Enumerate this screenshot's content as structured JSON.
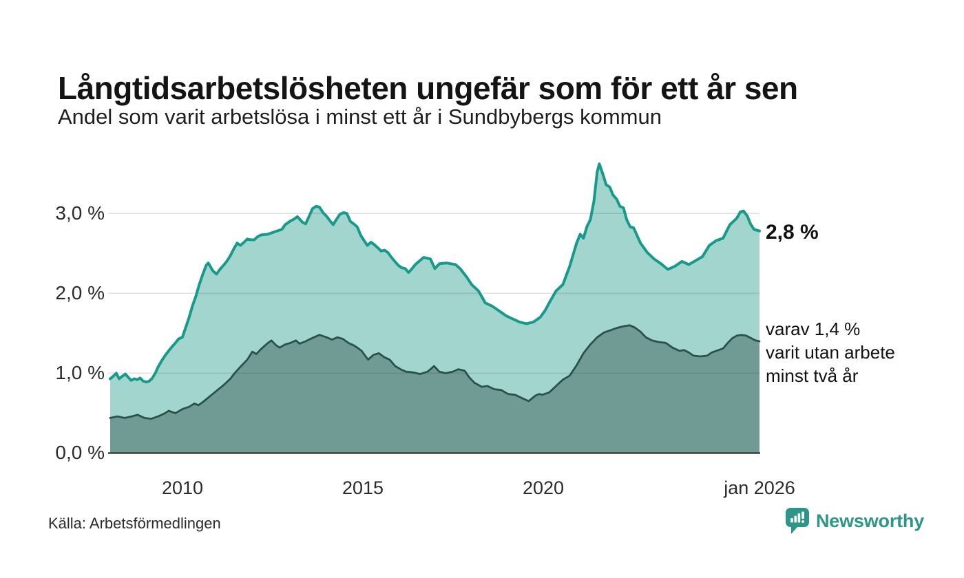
{
  "header": {
    "title": "Långtidsarbetslösheten ungefär som för ett år sen",
    "subtitle": "Andel som varit arbetslösa i minst ett år i Sundbybergs kommun"
  },
  "footer": {
    "source": "Källa: Arbetsförmedlingen",
    "brand": "Newsworthy"
  },
  "colors": {
    "line_top": "#179a8c",
    "fill_top": "#a2d5ce",
    "line_bottom": "#2b514d",
    "fill_bottom": "#709b94",
    "gridline": "rgba(30,30,30,0.13)",
    "axis_baseline": "#3f3f3f",
    "brand_teal": "#2e9589",
    "text": "#141414"
  },
  "chart_data": {
    "type": "area",
    "title": "Långtidsarbetslösheten ungefär som för ett år sen",
    "subtitle": "Andel som varit arbetslösa i minst ett år i Sundbybergs kommun",
    "source": "Källa: Arbetsförmedlingen",
    "x_domain": [
      2008.0,
      2026.0
    ],
    "y_domain": [
      0,
      3.78
    ],
    "grid": true,
    "legend_position": "end-of-line annotations",
    "annotation_latest": "2,8 %",
    "annotation_secondary": [
      "varav 1,4 %",
      "varit utan arbete",
      "minst två år"
    ],
    "yticks": [
      {
        "value": 0,
        "label": "0,0 %"
      },
      {
        "value": 1,
        "label": "1,0 %"
      },
      {
        "value": 2,
        "label": "2,0 %"
      },
      {
        "value": 3,
        "label": "3,0 %"
      }
    ],
    "xticks": [
      {
        "value": 2010,
        "label": "2010"
      },
      {
        "value": 2015,
        "label": "2015"
      },
      {
        "value": 2020,
        "label": "2020"
      },
      {
        "value": 2026,
        "label": "jan 2026"
      }
    ],
    "series": [
      {
        "name": "arbetslösa minst ett år",
        "color": "#179a8c",
        "fill": "#a2d5ce",
        "stroke_width": 4,
        "latest_value": 2.8,
        "points": [
          [
            2008.0,
            0.93
          ],
          [
            2008.08,
            0.96
          ],
          [
            2008.17,
            1.0
          ],
          [
            2008.25,
            0.93
          ],
          [
            2008.33,
            0.96
          ],
          [
            2008.42,
            0.99
          ],
          [
            2008.5,
            0.95
          ],
          [
            2008.58,
            0.91
          ],
          [
            2008.67,
            0.93
          ],
          [
            2008.75,
            0.92
          ],
          [
            2008.83,
            0.94
          ],
          [
            2008.92,
            0.9
          ],
          [
            2009.0,
            0.89
          ],
          [
            2009.08,
            0.9
          ],
          [
            2009.17,
            0.94
          ],
          [
            2009.25,
            1.0
          ],
          [
            2009.33,
            1.08
          ],
          [
            2009.42,
            1.15
          ],
          [
            2009.52,
            1.22
          ],
          [
            2009.62,
            1.28
          ],
          [
            2009.71,
            1.33
          ],
          [
            2009.81,
            1.38
          ],
          [
            2009.9,
            1.43
          ],
          [
            2010.0,
            1.45
          ],
          [
            2010.1,
            1.58
          ],
          [
            2010.19,
            1.7
          ],
          [
            2010.28,
            1.84
          ],
          [
            2010.38,
            1.97
          ],
          [
            2010.47,
            2.11
          ],
          [
            2010.57,
            2.24
          ],
          [
            2010.66,
            2.35
          ],
          [
            2010.72,
            2.38
          ],
          [
            2010.85,
            2.28
          ],
          [
            2010.95,
            2.24
          ],
          [
            2011.04,
            2.3
          ],
          [
            2011.14,
            2.35
          ],
          [
            2011.23,
            2.4
          ],
          [
            2011.33,
            2.47
          ],
          [
            2011.42,
            2.55
          ],
          [
            2011.52,
            2.63
          ],
          [
            2011.61,
            2.6
          ],
          [
            2011.71,
            2.64
          ],
          [
            2011.8,
            2.68
          ],
          [
            2011.9,
            2.67
          ],
          [
            2011.99,
            2.67
          ],
          [
            2012.09,
            2.71
          ],
          [
            2012.18,
            2.73
          ],
          [
            2012.37,
            2.74
          ],
          [
            2012.56,
            2.77
          ],
          [
            2012.76,
            2.8
          ],
          [
            2012.85,
            2.86
          ],
          [
            2012.98,
            2.9
          ],
          [
            2013.1,
            2.93
          ],
          [
            2013.19,
            2.96
          ],
          [
            2013.33,
            2.89
          ],
          [
            2013.42,
            2.87
          ],
          [
            2013.52,
            2.97
          ],
          [
            2013.61,
            3.06
          ],
          [
            2013.71,
            3.09
          ],
          [
            2013.8,
            3.08
          ],
          [
            2013.9,
            3.01
          ],
          [
            2013.99,
            2.97
          ],
          [
            2014.09,
            2.91
          ],
          [
            2014.18,
            2.86
          ],
          [
            2014.28,
            2.93
          ],
          [
            2014.37,
            2.99
          ],
          [
            2014.47,
            3.01
          ],
          [
            2014.56,
            3.0
          ],
          [
            2014.66,
            2.9
          ],
          [
            2014.75,
            2.87
          ],
          [
            2014.85,
            2.83
          ],
          [
            2014.94,
            2.73
          ],
          [
            2015.04,
            2.66
          ],
          [
            2015.13,
            2.6
          ],
          [
            2015.23,
            2.64
          ],
          [
            2015.32,
            2.61
          ],
          [
            2015.42,
            2.57
          ],
          [
            2015.51,
            2.53
          ],
          [
            2015.61,
            2.54
          ],
          [
            2015.7,
            2.51
          ],
          [
            2015.8,
            2.45
          ],
          [
            2015.89,
            2.4
          ],
          [
            2015.99,
            2.35
          ],
          [
            2016.08,
            2.32
          ],
          [
            2016.18,
            2.31
          ],
          [
            2016.27,
            2.26
          ],
          [
            2016.37,
            2.31
          ],
          [
            2016.46,
            2.36
          ],
          [
            2016.56,
            2.4
          ],
          [
            2016.69,
            2.45
          ],
          [
            2016.78,
            2.44
          ],
          [
            2016.88,
            2.43
          ],
          [
            2017.0,
            2.31
          ],
          [
            2017.13,
            2.37
          ],
          [
            2017.32,
            2.38
          ],
          [
            2017.44,
            2.37
          ],
          [
            2017.57,
            2.36
          ],
          [
            2017.7,
            2.31
          ],
          [
            2017.89,
            2.2
          ],
          [
            2018.02,
            2.11
          ],
          [
            2018.21,
            2.03
          ],
          [
            2018.4,
            1.88
          ],
          [
            2018.59,
            1.84
          ],
          [
            2018.78,
            1.78
          ],
          [
            2018.97,
            1.72
          ],
          [
            2019.16,
            1.68
          ],
          [
            2019.35,
            1.64
          ],
          [
            2019.54,
            1.62
          ],
          [
            2019.73,
            1.64
          ],
          [
            2019.92,
            1.7
          ],
          [
            2020.05,
            1.78
          ],
          [
            2020.17,
            1.88
          ],
          [
            2020.36,
            2.03
          ],
          [
            2020.55,
            2.11
          ],
          [
            2020.74,
            2.34
          ],
          [
            2020.93,
            2.63
          ],
          [
            2021.03,
            2.74
          ],
          [
            2021.12,
            2.69
          ],
          [
            2021.22,
            2.84
          ],
          [
            2021.31,
            2.92
          ],
          [
            2021.41,
            3.15
          ],
          [
            2021.5,
            3.52
          ],
          [
            2021.56,
            3.62
          ],
          [
            2021.66,
            3.49
          ],
          [
            2021.75,
            3.36
          ],
          [
            2021.85,
            3.33
          ],
          [
            2021.94,
            3.23
          ],
          [
            2022.04,
            3.18
          ],
          [
            2022.13,
            3.09
          ],
          [
            2022.23,
            3.07
          ],
          [
            2022.32,
            2.92
          ],
          [
            2022.42,
            2.83
          ],
          [
            2022.51,
            2.82
          ],
          [
            2022.7,
            2.63
          ],
          [
            2022.89,
            2.51
          ],
          [
            2023.08,
            2.43
          ],
          [
            2023.27,
            2.37
          ],
          [
            2023.46,
            2.3
          ],
          [
            2023.66,
            2.34
          ],
          [
            2023.85,
            2.4
          ],
          [
            2024.04,
            2.36
          ],
          [
            2024.23,
            2.41
          ],
          [
            2024.42,
            2.46
          ],
          [
            2024.61,
            2.6
          ],
          [
            2024.8,
            2.66
          ],
          [
            2024.99,
            2.69
          ],
          [
            2025.18,
            2.86
          ],
          [
            2025.37,
            2.94
          ],
          [
            2025.47,
            3.02
          ],
          [
            2025.56,
            3.03
          ],
          [
            2025.66,
            2.97
          ],
          [
            2025.75,
            2.87
          ],
          [
            2025.85,
            2.8
          ],
          [
            2026.0,
            2.78
          ]
        ]
      },
      {
        "name": "utan arbete minst två år",
        "color": "#2b514d",
        "fill": "#709b94",
        "stroke_width": 2.8,
        "latest_value": 1.4,
        "points": [
          [
            2008.0,
            0.44
          ],
          [
            2008.2,
            0.46
          ],
          [
            2008.4,
            0.44
          ],
          [
            2008.6,
            0.46
          ],
          [
            2008.76,
            0.48
          ],
          [
            2008.95,
            0.44
          ],
          [
            2009.14,
            0.43
          ],
          [
            2009.33,
            0.46
          ],
          [
            2009.52,
            0.5
          ],
          [
            2009.62,
            0.53
          ],
          [
            2009.81,
            0.5
          ],
          [
            2010.0,
            0.55
          ],
          [
            2010.19,
            0.58
          ],
          [
            2010.33,
            0.62
          ],
          [
            2010.45,
            0.6
          ],
          [
            2010.6,
            0.65
          ],
          [
            2010.76,
            0.71
          ],
          [
            2010.95,
            0.78
          ],
          [
            2011.14,
            0.85
          ],
          [
            2011.33,
            0.93
          ],
          [
            2011.45,
            1.0
          ],
          [
            2011.61,
            1.08
          ],
          [
            2011.8,
            1.17
          ],
          [
            2011.94,
            1.27
          ],
          [
            2012.05,
            1.24
          ],
          [
            2012.2,
            1.31
          ],
          [
            2012.35,
            1.37
          ],
          [
            2012.47,
            1.41
          ],
          [
            2012.6,
            1.35
          ],
          [
            2012.7,
            1.32
          ],
          [
            2012.85,
            1.36
          ],
          [
            2013.0,
            1.38
          ],
          [
            2013.15,
            1.41
          ],
          [
            2013.25,
            1.37
          ],
          [
            2013.42,
            1.4
          ],
          [
            2013.6,
            1.44
          ],
          [
            2013.8,
            1.48
          ],
          [
            2014.0,
            1.45
          ],
          [
            2014.15,
            1.42
          ],
          [
            2014.3,
            1.45
          ],
          [
            2014.45,
            1.43
          ],
          [
            2014.6,
            1.38
          ],
          [
            2014.75,
            1.35
          ],
          [
            2014.85,
            1.32
          ],
          [
            2014.97,
            1.28
          ],
          [
            2015.15,
            1.17
          ],
          [
            2015.3,
            1.23
          ],
          [
            2015.45,
            1.25
          ],
          [
            2015.6,
            1.2
          ],
          [
            2015.75,
            1.17
          ],
          [
            2015.9,
            1.09
          ],
          [
            2016.05,
            1.05
          ],
          [
            2016.2,
            1.02
          ],
          [
            2016.4,
            1.01
          ],
          [
            2016.6,
            0.99
          ],
          [
            2016.8,
            1.02
          ],
          [
            2016.98,
            1.09
          ],
          [
            2017.12,
            1.02
          ],
          [
            2017.3,
            1.0
          ],
          [
            2017.5,
            1.02
          ],
          [
            2017.65,
            1.05
          ],
          [
            2017.83,
            1.03
          ],
          [
            2017.95,
            0.95
          ],
          [
            2018.1,
            0.88
          ],
          [
            2018.3,
            0.83
          ],
          [
            2018.46,
            0.84
          ],
          [
            2018.65,
            0.8
          ],
          [
            2018.84,
            0.79
          ],
          [
            2019.03,
            0.74
          ],
          [
            2019.22,
            0.73
          ],
          [
            2019.41,
            0.69
          ],
          [
            2019.6,
            0.65
          ],
          [
            2019.79,
            0.72
          ],
          [
            2019.89,
            0.74
          ],
          [
            2019.98,
            0.73
          ],
          [
            2020.17,
            0.76
          ],
          [
            2020.36,
            0.84
          ],
          [
            2020.55,
            0.92
          ],
          [
            2020.74,
            0.97
          ],
          [
            2020.93,
            1.1
          ],
          [
            2021.12,
            1.25
          ],
          [
            2021.31,
            1.36
          ],
          [
            2021.5,
            1.45
          ],
          [
            2021.69,
            1.51
          ],
          [
            2021.88,
            1.54
          ],
          [
            2022.07,
            1.57
          ],
          [
            2022.26,
            1.59
          ],
          [
            2022.4,
            1.6
          ],
          [
            2022.55,
            1.57
          ],
          [
            2022.7,
            1.52
          ],
          [
            2022.85,
            1.45
          ],
          [
            2023.02,
            1.41
          ],
          [
            2023.21,
            1.39
          ],
          [
            2023.4,
            1.38
          ],
          [
            2023.59,
            1.32
          ],
          [
            2023.78,
            1.28
          ],
          [
            2023.91,
            1.29
          ],
          [
            2024.04,
            1.26
          ],
          [
            2024.17,
            1.22
          ],
          [
            2024.36,
            1.21
          ],
          [
            2024.55,
            1.22
          ],
          [
            2024.68,
            1.26
          ],
          [
            2024.8,
            1.28
          ],
          [
            2024.99,
            1.31
          ],
          [
            2025.12,
            1.38
          ],
          [
            2025.25,
            1.44
          ],
          [
            2025.37,
            1.47
          ],
          [
            2025.5,
            1.48
          ],
          [
            2025.63,
            1.47
          ],
          [
            2025.76,
            1.44
          ],
          [
            2025.89,
            1.41
          ],
          [
            2026.0,
            1.4
          ]
        ]
      }
    ]
  }
}
